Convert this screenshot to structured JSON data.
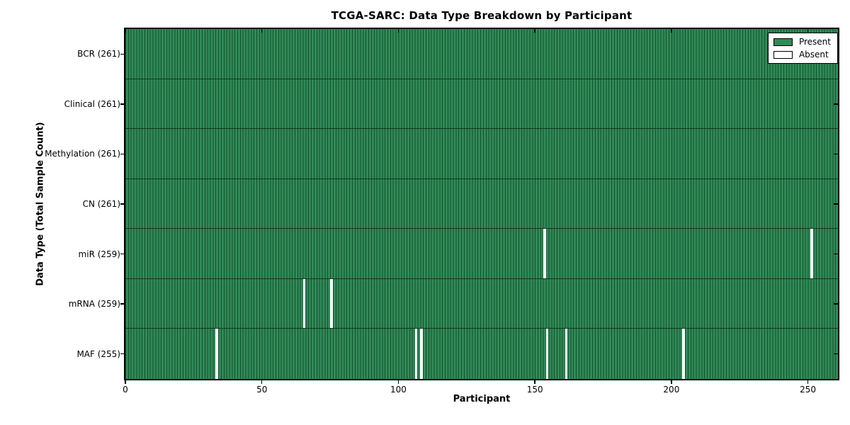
{
  "chart_data": {
    "type": "heatmap",
    "title": "TCGA-SARC: Data Type Breakdown by Participant",
    "xlabel": "Participant",
    "ylabel": "Data Type (Total Sample Count)",
    "x_range": [
      0,
      261
    ],
    "x_ticks": [
      0,
      50,
      100,
      150,
      200,
      250
    ],
    "n_participants": 261,
    "rows": [
      {
        "label": "BCR (261)",
        "total": 261,
        "absent": []
      },
      {
        "label": "Clinical (261)",
        "total": 261,
        "absent": []
      },
      {
        "label": "Methylation (261)",
        "total": 261,
        "absent": []
      },
      {
        "label": "CN (261)",
        "total": 261,
        "absent": []
      },
      {
        "label": "miR (259)",
        "total": 259,
        "absent": [
          153,
          251
        ]
      },
      {
        "label": "mRNA (259)",
        "total": 259,
        "absent": [
          65,
          75
        ]
      },
      {
        "label": "MAF (255)",
        "total": 255,
        "absent": [
          33,
          106,
          108,
          154,
          161,
          204
        ]
      }
    ],
    "colors": {
      "present": "#2e8b57",
      "absent": "#ffffff",
      "bar_edge": "#1b4d30",
      "row_divider": "#16341f",
      "spine": "#000000",
      "background": "#ffffff"
    },
    "legend": {
      "position": "upper right",
      "items": [
        {
          "label": "Present",
          "color": "#2e8b57"
        },
        {
          "label": "Absent",
          "color": "#ffffff"
        }
      ]
    },
    "grid": false
  }
}
